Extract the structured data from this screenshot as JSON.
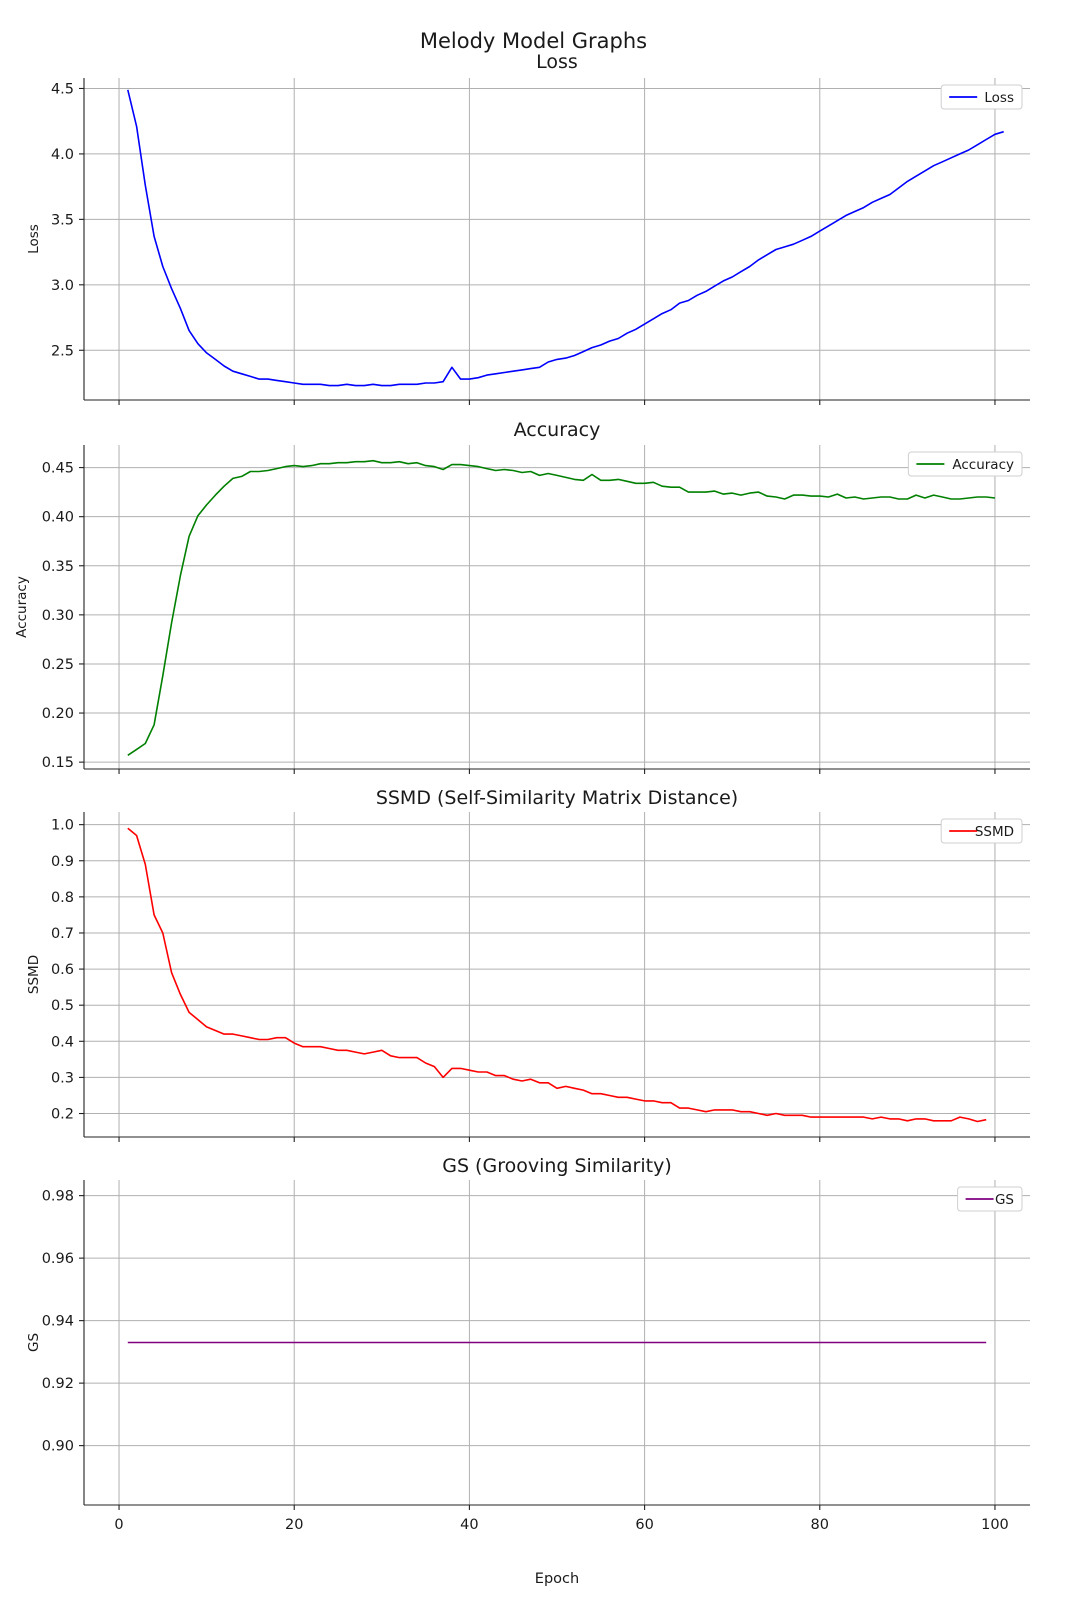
{
  "suptitle": "Melody Model Graphs",
  "xlabel": "Epoch",
  "x_ticks": [
    0,
    20,
    40,
    60,
    80,
    100
  ],
  "chart_data": [
    {
      "type": "line",
      "title": "Loss",
      "ylabel": "Loss",
      "legend": "top-right",
      "grid": true,
      "xlim": [
        -4,
        104
      ],
      "ylim": [
        2.12,
        4.58
      ],
      "y_ticks": [
        2.5,
        3.0,
        3.5,
        4.0,
        4.5
      ],
      "y_tick_labels": [
        "2.5",
        "3.0",
        "3.5",
        "4.0",
        "4.5"
      ],
      "show_x_tick_labels": false,
      "series": [
        {
          "name": "Loss",
          "color": "#0000ff",
          "x_start": 1,
          "values": [
            4.49,
            4.21,
            3.76,
            3.37,
            3.14,
            2.97,
            2.82,
            2.65,
            2.55,
            2.48,
            2.43,
            2.38,
            2.34,
            2.32,
            2.3,
            2.28,
            2.28,
            2.27,
            2.26,
            2.25,
            2.24,
            2.24,
            2.24,
            2.23,
            2.23,
            2.24,
            2.23,
            2.23,
            2.24,
            2.23,
            2.23,
            2.24,
            2.24,
            2.24,
            2.25,
            2.25,
            2.26,
            2.37,
            2.28,
            2.28,
            2.29,
            2.31,
            2.32,
            2.33,
            2.34,
            2.35,
            2.36,
            2.37,
            2.41,
            2.43,
            2.44,
            2.46,
            2.49,
            2.52,
            2.54,
            2.57,
            2.59,
            2.63,
            2.66,
            2.7,
            2.74,
            2.78,
            2.81,
            2.86,
            2.88,
            2.92,
            2.95,
            2.99,
            3.03,
            3.06,
            3.1,
            3.14,
            3.19,
            3.23,
            3.27,
            3.29,
            3.31,
            3.34,
            3.37,
            3.41,
            3.45,
            3.49,
            3.53,
            3.56,
            3.59,
            3.63,
            3.66,
            3.69,
            3.74,
            3.79,
            3.83,
            3.87,
            3.91,
            3.94,
            3.97,
            4.0,
            4.03,
            4.07,
            4.11,
            4.15,
            4.17
          ]
        }
      ]
    },
    {
      "type": "line",
      "title": "Accuracy",
      "ylabel": "Accuracy",
      "legend": "top-right",
      "grid": true,
      "xlim": [
        -4,
        104
      ],
      "ylim": [
        0.143,
        0.473
      ],
      "y_ticks": [
        0.15,
        0.2,
        0.25,
        0.3,
        0.35,
        0.4,
        0.45
      ],
      "y_tick_labels": [
        "0.15",
        "0.20",
        "0.25",
        "0.30",
        "0.35",
        "0.40",
        "0.45"
      ],
      "show_x_tick_labels": false,
      "series": [
        {
          "name": "Accuracy",
          "color": "#008000",
          "x_start": 1,
          "values": [
            0.157,
            0.163,
            0.169,
            0.188,
            0.238,
            0.292,
            0.34,
            0.38,
            0.401,
            0.412,
            0.422,
            0.431,
            0.439,
            0.441,
            0.446,
            0.446,
            0.447,
            0.449,
            0.451,
            0.452,
            0.451,
            0.452,
            0.454,
            0.454,
            0.455,
            0.455,
            0.456,
            0.456,
            0.457,
            0.455,
            0.455,
            0.456,
            0.454,
            0.455,
            0.452,
            0.451,
            0.448,
            0.453,
            0.453,
            0.452,
            0.451,
            0.449,
            0.447,
            0.448,
            0.447,
            0.445,
            0.446,
            0.442,
            0.444,
            0.442,
            0.44,
            0.438,
            0.437,
            0.443,
            0.437,
            0.437,
            0.438,
            0.436,
            0.434,
            0.434,
            0.435,
            0.431,
            0.43,
            0.43,
            0.425,
            0.425,
            0.425,
            0.426,
            0.423,
            0.424,
            0.422,
            0.424,
            0.425,
            0.421,
            0.42,
            0.418,
            0.422,
            0.422,
            0.421,
            0.421,
            0.42,
            0.423,
            0.419,
            0.42,
            0.418,
            0.419,
            0.42,
            0.42,
            0.418,
            0.418,
            0.422,
            0.419,
            0.422,
            0.42,
            0.418,
            0.418,
            0.419,
            0.42,
            0.42,
            0.419
          ]
        }
      ]
    },
    {
      "type": "line",
      "title": "SSMD (Self-Similarity Matrix Distance)",
      "ylabel": "SSMD",
      "legend": "top-right",
      "grid": true,
      "xlim": [
        -4,
        104
      ],
      "ylim": [
        0.135,
        1.035
      ],
      "y_ticks": [
        0.2,
        0.3,
        0.4,
        0.5,
        0.6,
        0.7,
        0.8,
        0.9,
        1.0
      ],
      "y_tick_labels": [
        "0.2",
        "0.3",
        "0.4",
        "0.5",
        "0.6",
        "0.7",
        "0.8",
        "0.9",
        "1.0"
      ],
      "show_x_tick_labels": false,
      "series": [
        {
          "name": "SSMD",
          "color": "#ff0000",
          "x_start": 1,
          "values": [
            0.99,
            0.97,
            0.89,
            0.75,
            0.7,
            0.59,
            0.53,
            0.48,
            0.46,
            0.44,
            0.43,
            0.42,
            0.42,
            0.415,
            0.41,
            0.405,
            0.405,
            0.41,
            0.41,
            0.395,
            0.385,
            0.385,
            0.385,
            0.38,
            0.375,
            0.375,
            0.37,
            0.365,
            0.37,
            0.375,
            0.36,
            0.355,
            0.355,
            0.355,
            0.34,
            0.33,
            0.3,
            0.325,
            0.325,
            0.32,
            0.315,
            0.315,
            0.305,
            0.305,
            0.295,
            0.29,
            0.295,
            0.285,
            0.285,
            0.27,
            0.275,
            0.27,
            0.265,
            0.255,
            0.255,
            0.25,
            0.245,
            0.245,
            0.24,
            0.235,
            0.235,
            0.23,
            0.23,
            0.215,
            0.215,
            0.21,
            0.205,
            0.21,
            0.21,
            0.21,
            0.205,
            0.205,
            0.2,
            0.195,
            0.2,
            0.195,
            0.195,
            0.195,
            0.19,
            0.19,
            0.19,
            0.19,
            0.19,
            0.19,
            0.19,
            0.185,
            0.19,
            0.185,
            0.185,
            0.18,
            0.185,
            0.185,
            0.18,
            0.18,
            0.18,
            0.19,
            0.185,
            0.178,
            0.183
          ]
        }
      ]
    },
    {
      "type": "line",
      "title": "GS (Grooving Similarity)",
      "ylabel": "GS",
      "legend": "top-right",
      "grid": true,
      "xlim": [
        -4,
        104
      ],
      "ylim": [
        0.881,
        0.985
      ],
      "y_ticks": [
        0.9,
        0.92,
        0.94,
        0.96,
        0.98
      ],
      "y_tick_labels": [
        "0.90",
        "0.92",
        "0.94",
        "0.96",
        "0.98"
      ],
      "show_x_tick_labels": true,
      "series": [
        {
          "name": "GS",
          "color": "#800080",
          "x": [
            1,
            99
          ],
          "values": [
            0.933,
            0.933
          ]
        }
      ]
    }
  ]
}
